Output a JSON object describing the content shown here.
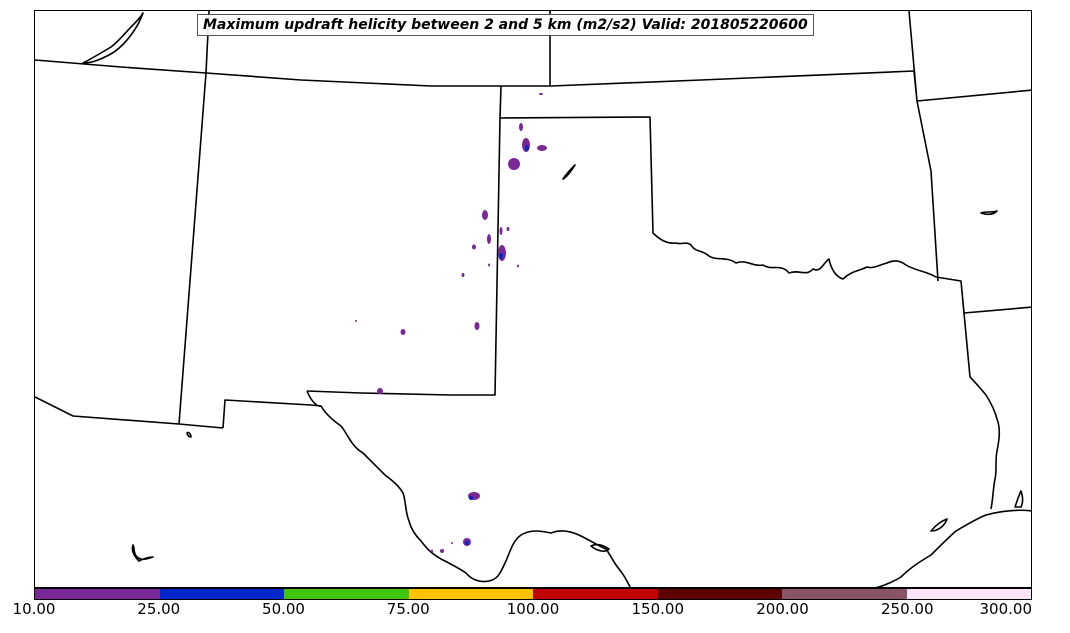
{
  "title": "Maximum updraft helicity between 2 and 5 km (m2/s2) Valid: 201805220600",
  "colorbar": {
    "ticks": [
      "10.00",
      "25.00",
      "50.00",
      "75.00",
      "100.00",
      "150.00",
      "200.00",
      "250.00",
      "300.00"
    ],
    "colors": [
      "#7b2897",
      "#0027c9",
      "#3fc50b",
      "#ffc300",
      "#c10000",
      "#5c0000",
      "#8a5468",
      "#fde4f9"
    ]
  },
  "map": {
    "boundary_color": "#000000",
    "helicity_cell_color_low": "#7b2897",
    "helicity_cell_color_mid": "#0027c9"
  }
}
